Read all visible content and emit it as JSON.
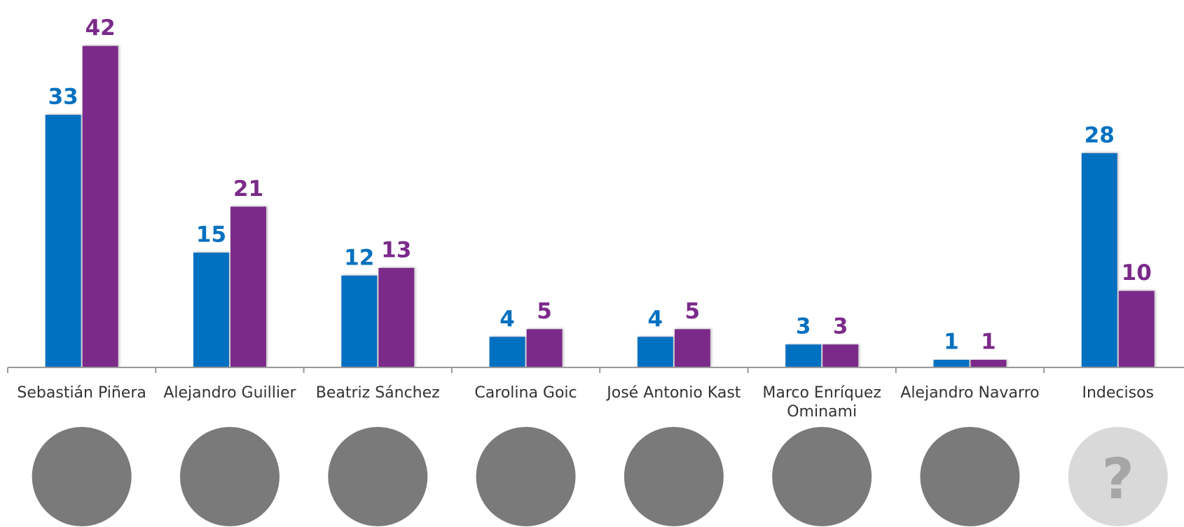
{
  "chart_data": {
    "type": "bar",
    "categories": [
      "Sebastián Piñera",
      "Alejandro Guillier",
      "Beatriz Sánchez",
      "Carolina Goic",
      "José Antonio Kast",
      "Marco Enríquez Ominami",
      "Alejandro Navarro",
      "Indecisos"
    ],
    "series": [
      {
        "color": "#0070c0",
        "values": [
          33,
          15,
          12,
          4,
          4,
          3,
          1,
          28
        ]
      },
      {
        "color": "#7b2a8a",
        "values": [
          42,
          21,
          13,
          5,
          5,
          3,
          1,
          10
        ]
      }
    ],
    "ylim": [
      0,
      48
    ],
    "photo_placeholder": "?"
  }
}
